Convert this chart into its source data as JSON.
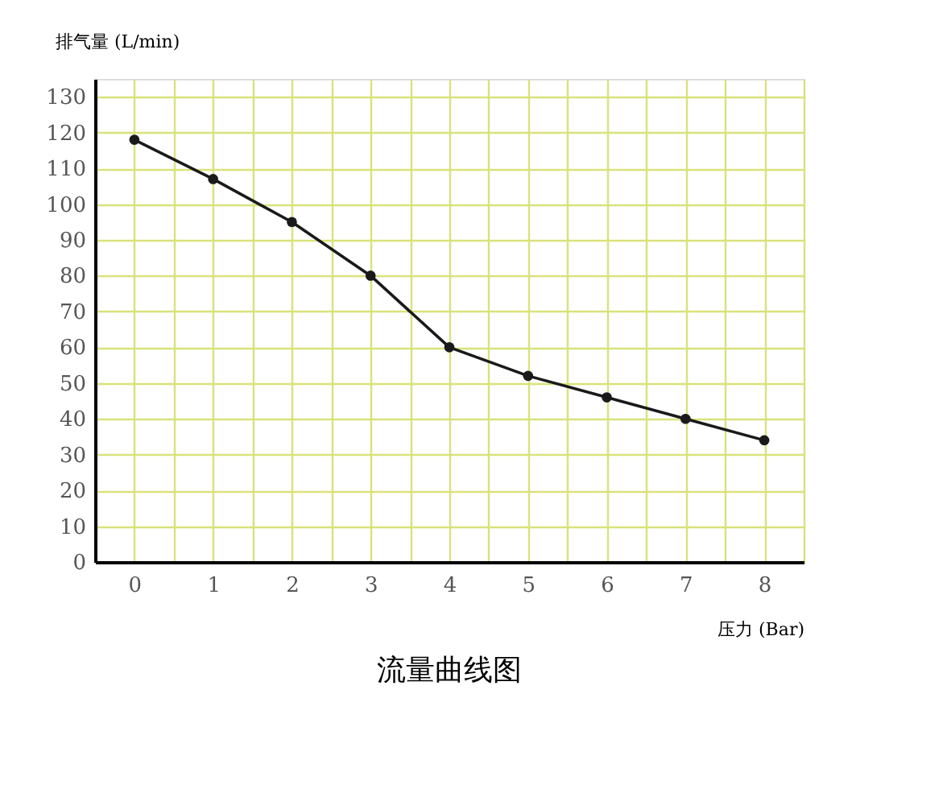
{
  "chart_data": {
    "type": "line",
    "title": "流量曲线图",
    "xlabel": "压力 (Bar)",
    "ylabel": "排气量 (L/min)",
    "x": [
      0,
      1,
      2,
      3,
      4,
      5,
      6,
      7,
      8
    ],
    "series": [
      {
        "color": "#1a1a1a",
        "values": [
          118,
          107,
          95,
          80,
          60,
          52,
          46,
          40,
          34
        ]
      }
    ],
    "xlim": [
      -0.5,
      8.5
    ],
    "xticks": [
      0,
      {
        "value": 0.5,
        "label": null
      },
      1,
      {
        "value": 1.5,
        "label": null
      },
      2,
      {
        "value": 2.5,
        "label": null
      },
      3,
      {
        "value": 3.5,
        "label": null
      },
      4,
      {
        "value": 4.5,
        "label": null
      },
      5,
      {
        "value": 5.5,
        "label": null
      },
      6,
      {
        "value": 6.5,
        "label": null
      },
      7,
      {
        "value": 7.5,
        "label": null
      },
      8,
      {
        "value": 8.5,
        "label": null
      }
    ],
    "ylim": [
      0,
      135
    ],
    "yticks": [
      0,
      10,
      20,
      30,
      40,
      50,
      60,
      70,
      80,
      90,
      100,
      110,
      120,
      130
    ],
    "grid": true,
    "marker": "circle",
    "line_style": "solid"
  }
}
